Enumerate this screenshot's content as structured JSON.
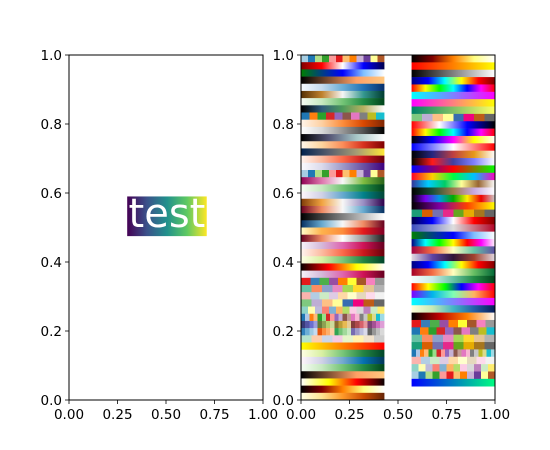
{
  "chart_data": [
    {
      "type": "image",
      "panel": "left",
      "xlim": [
        0,
        1
      ],
      "ylim": [
        0,
        1
      ],
      "xticks": [
        "0.00",
        "0.25",
        "0.50",
        "0.75",
        "1.00"
      ],
      "yticks": [
        "0.0",
        "0.2",
        "0.4",
        "0.6",
        "0.8",
        "1.0"
      ],
      "annotation": {
        "text": "test",
        "x_extent": [
          0.3,
          0.71
        ],
        "y_extent": [
          0.475,
          0.59
        ],
        "colormap": "viridis"
      }
    },
    {
      "type": "image",
      "panel": "right",
      "xlim": [
        0,
        1
      ],
      "ylim": [
        0,
        1
      ],
      "xticks": [
        "0.00",
        "0.25",
        "0.50",
        "0.75",
        "1.00"
      ],
      "yticks": [
        "0.0",
        "0.2",
        "0.4",
        "0.6",
        "0.8",
        "1.0"
      ],
      "columns": [
        {
          "x_extent": [
            0,
            0.43
          ],
          "y_extent": [
            0,
            1
          ],
          "colormaps": [
            "Paired",
            "seismic_r",
            "ocean",
            "copper",
            "Blues",
            "BrBG",
            "Greens",
            "gist_earth",
            "tab10",
            "Oranges",
            "Greys",
            "bone",
            "OrRd",
            "cividis",
            "Reds",
            "Purples",
            "Paired",
            "PiYG",
            "Greens",
            "PuBuGn",
            "PuOr",
            "RdBu",
            "gray",
            "RdBu_r",
            "YlOrRd",
            "RdGy",
            "PuRd",
            "Reds",
            "YlGn",
            "hot",
            "PuRd",
            "Set1",
            "Set2",
            "Pastel1",
            "Accent",
            "Set3",
            "tab20",
            "tab20b",
            "tab20c",
            "Pastel2",
            "autumn_r",
            "YlGn",
            "PuBu",
            "Greens",
            "copper",
            "hot_r",
            "afmhot",
            "YlOrBr"
          ]
        },
        {
          "x_extent": [
            0.57,
            1.0
          ],
          "y_extent": [
            0.04,
            1
          ],
          "colormaps": [
            "afmhot",
            "autumn",
            "gray",
            "jet",
            "hsv",
            "cool",
            "spring",
            "summer",
            "Accent",
            "flag",
            "hsv",
            "gnuplot2",
            "bwr",
            "CMRmap",
            "gist_stern",
            "brg",
            "gist_rainbow",
            "terrain",
            "cubehelix",
            "nipy_spectral",
            "gnuplot",
            "Dark2",
            "seismic",
            "coolwarm",
            "ocean",
            "gist_ncar",
            "Spectral",
            "twilight",
            "jet",
            "RdYlGn",
            "BuGn",
            "prism",
            "rainbow",
            "cool",
            "YlGnBu",
            "gist_heat",
            "Set1",
            "tab10",
            "Set2",
            "Dark2",
            "tab20",
            "Pastel1",
            "Set3",
            "Paired",
            "winter"
          ]
        }
      ]
    }
  ]
}
